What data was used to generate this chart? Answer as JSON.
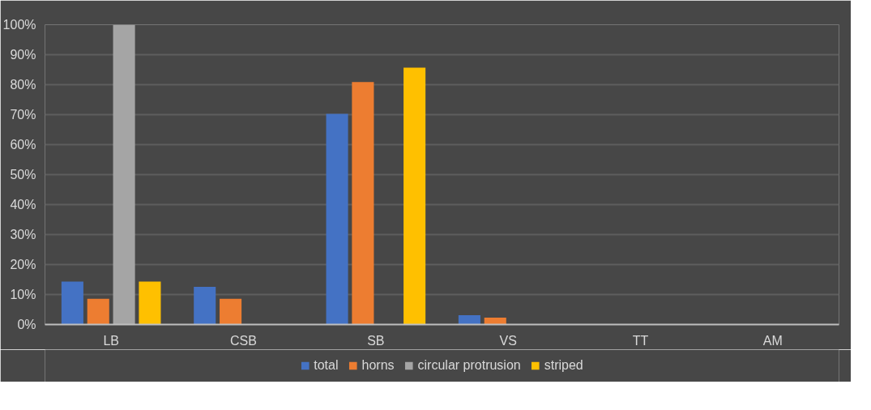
{
  "chart_data": {
    "type": "bar",
    "categories": [
      "LB",
      "CSB",
      "SB",
      "VS",
      "TT",
      "AM"
    ],
    "series": [
      {
        "name": "total",
        "color": "#4472c4",
        "values": [
          14.3,
          12.6,
          70.3,
          3.1,
          0,
          0
        ]
      },
      {
        "name": "horns",
        "color": "#ed7d31",
        "values": [
          8.6,
          8.6,
          80.9,
          2.3,
          0,
          0
        ]
      },
      {
        "name": "circular protrusion",
        "color": "#a5a5a5",
        "values": [
          100,
          0,
          0,
          0,
          0,
          0
        ]
      },
      {
        "name": "striped",
        "color": "#ffc000",
        "values": [
          14.3,
          0,
          85.7,
          0,
          0,
          0
        ]
      }
    ],
    "ylim": [
      0,
      100
    ],
    "yticks": [
      {
        "value": 0,
        "label": "0%"
      },
      {
        "value": 10,
        "label": "10%"
      },
      {
        "value": 20,
        "label": "20%"
      },
      {
        "value": 30,
        "label": "30%"
      },
      {
        "value": 40,
        "label": "40%"
      },
      {
        "value": 50,
        "label": "50%"
      },
      {
        "value": 60,
        "label": "60%"
      },
      {
        "value": 70,
        "label": "70%"
      },
      {
        "value": 80,
        "label": "80%"
      },
      {
        "value": 90,
        "label": "90%"
      },
      {
        "value": 100,
        "label": "100%"
      }
    ],
    "grid": "y",
    "legend": "bottom"
  }
}
